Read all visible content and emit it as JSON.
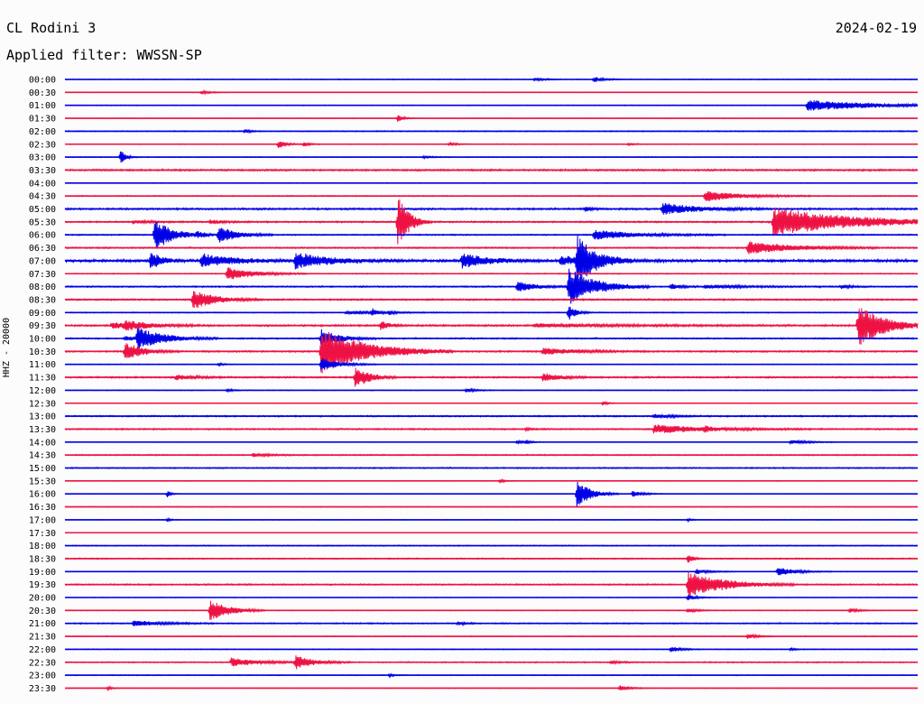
{
  "header": {
    "station": "CL Rodini 3",
    "date": "2024-02-19",
    "filter": "Applied filter: WWSSN-SP"
  },
  "chart_data": {
    "type": "helicorder",
    "title": "CL Rodini 3",
    "subtitle": "Applied filter: WWSSN-SP",
    "ylabel": "HHZ - 20000",
    "colors": [
      "#0000e6",
      "#ee1144"
    ],
    "rows": [
      {
        "time": "00:00",
        "noise": 0.4,
        "events": [
          [
            0.55,
            0.35,
            1
          ],
          [
            0.62,
            0.55,
            1
          ]
        ]
      },
      {
        "time": "00:30",
        "noise": 0.3,
        "events": [
          [
            0.16,
            0.3,
            1
          ]
        ]
      },
      {
        "time": "01:00",
        "noise": 0.4,
        "events": [
          [
            0.87,
            1.0,
            8
          ]
        ]
      },
      {
        "time": "01:30",
        "noise": 0.3,
        "events": [
          [
            0.39,
            0.7,
            0.6
          ]
        ]
      },
      {
        "time": "02:00",
        "noise": 0.5,
        "events": [
          [
            0.21,
            0.4,
            0.6
          ]
        ]
      },
      {
        "time": "02:30",
        "noise": 0.4,
        "events": [
          [
            0.25,
            0.8,
            0.8
          ],
          [
            0.28,
            0.4,
            0.6
          ],
          [
            0.45,
            0.3,
            0.8
          ],
          [
            0.66,
            0.25,
            0.5
          ]
        ]
      },
      {
        "time": "03:00",
        "noise": 0.4,
        "events": [
          [
            0.065,
            1.4,
            0.6
          ],
          [
            0.42,
            0.2,
            1
          ]
        ]
      },
      {
        "time": "03:30",
        "noise": 0.9,
        "events": []
      },
      {
        "time": "04:00",
        "noise": 0.35,
        "events": []
      },
      {
        "time": "04:30",
        "noise": 0.5,
        "events": [
          [
            0.75,
            1.0,
            4
          ]
        ]
      },
      {
        "time": "05:00",
        "noise": 0.9,
        "events": [
          [
            0.61,
            0.5,
            0.6
          ],
          [
            0.7,
            1.1,
            4
          ]
        ]
      },
      {
        "time": "05:30",
        "noise": 0.8,
        "events": [
          [
            0.08,
            0.3,
            2
          ],
          [
            0.17,
            0.4,
            1.5
          ],
          [
            0.39,
            5.5,
            1.2
          ],
          [
            0.83,
            2.6,
            9
          ]
        ]
      },
      {
        "time": "06:00",
        "noise": 0.6,
        "events": [
          [
            0.105,
            3.0,
            2
          ],
          [
            0.155,
            0.5,
            1
          ],
          [
            0.18,
            1.8,
            2
          ],
          [
            0.62,
            0.9,
            5
          ]
        ]
      },
      {
        "time": "06:30",
        "noise": 0.7,
        "events": [
          [
            0.8,
            1.2,
            5
          ]
        ]
      },
      {
        "time": "07:00",
        "noise": 1.3,
        "events": [
          [
            0.1,
            1.8,
            1.2
          ],
          [
            0.16,
            1.2,
            4
          ],
          [
            0.27,
            1.4,
            4
          ],
          [
            0.465,
            1.4,
            3
          ],
          [
            0.58,
            0.8,
            4
          ],
          [
            0.6,
            4.5,
            2
          ]
        ]
      },
      {
        "time": "07:30",
        "noise": 0.5,
        "events": [
          [
            0.19,
            1.2,
            3
          ]
        ]
      },
      {
        "time": "08:00",
        "noise": 0.7,
        "events": [
          [
            0.53,
            1.0,
            2
          ],
          [
            0.59,
            3.5,
            3
          ],
          [
            0.71,
            0.6,
            1
          ],
          [
            0.75,
            0.3,
            5
          ],
          [
            0.91,
            0.4,
            1
          ]
        ]
      },
      {
        "time": "08:30",
        "noise": 0.8,
        "events": [
          [
            0.15,
            1.8,
            2.5
          ]
        ]
      },
      {
        "time": "09:00",
        "noise": 0.5,
        "events": [
          [
            0.33,
            0.3,
            4
          ],
          [
            0.36,
            0.7,
            0.6
          ],
          [
            0.38,
            0.4,
            0.5
          ],
          [
            0.59,
            1.6,
            0.8
          ]
        ]
      },
      {
        "time": "09:30",
        "noise": 0.9,
        "events": [
          [
            0.055,
            0.6,
            3
          ],
          [
            0.07,
            0.6,
            3
          ],
          [
            0.37,
            0.9,
            1
          ],
          [
            0.55,
            0.3,
            10
          ],
          [
            0.93,
            3.8,
            3
          ]
        ]
      },
      {
        "time": "10:00",
        "noise": 0.7,
        "events": [
          [
            0.085,
            1.8,
            3
          ],
          [
            0.3,
            1.7,
            2
          ],
          [
            0.07,
            0.4,
            3
          ]
        ]
      },
      {
        "time": "10:30",
        "noise": 0.8,
        "events": [
          [
            0.07,
            1.7,
            2
          ],
          [
            0.3,
            4.2,
            5
          ],
          [
            0.56,
            0.6,
            4
          ]
        ]
      },
      {
        "time": "11:00",
        "noise": 0.4,
        "events": [
          [
            0.18,
            0.3,
            0.5
          ],
          [
            0.3,
            1.2,
            2
          ]
        ]
      },
      {
        "time": "11:30",
        "noise": 0.8,
        "events": [
          [
            0.13,
            0.5,
            2
          ],
          [
            0.34,
            2.2,
            1.5
          ],
          [
            0.56,
            0.8,
            2
          ]
        ]
      },
      {
        "time": "12:00",
        "noise": 0.4,
        "events": [
          [
            0.19,
            0.3,
            0.6
          ],
          [
            0.47,
            0.4,
            1
          ]
        ]
      },
      {
        "time": "12:30",
        "noise": 0.3,
        "events": [
          [
            0.63,
            0.4,
            0.6
          ]
        ]
      },
      {
        "time": "13:00",
        "noise": 0.7,
        "events": [
          [
            0.69,
            0.4,
            2
          ]
        ]
      },
      {
        "time": "13:30",
        "noise": 0.7,
        "events": [
          [
            0.54,
            0.3,
            0.6
          ],
          [
            0.69,
            0.8,
            6
          ],
          [
            0.75,
            0.5,
            0.5
          ]
        ]
      },
      {
        "time": "14:00",
        "noise": 0.3,
        "events": [
          [
            0.53,
            0.5,
            0.5
          ],
          [
            0.54,
            0.4,
            0.6
          ],
          [
            0.85,
            0.4,
            2
          ]
        ]
      },
      {
        "time": "14:30",
        "noise": 0.6,
        "events": [
          [
            0.22,
            0.3,
            2
          ]
        ]
      },
      {
        "time": "15:00",
        "noise": 0.6,
        "events": []
      },
      {
        "time": "15:30",
        "noise": 0.3,
        "events": [
          [
            0.51,
            0.4,
            0.5
          ]
        ]
      },
      {
        "time": "16:00",
        "noise": 0.3,
        "events": [
          [
            0.12,
            0.6,
            0.4
          ],
          [
            0.6,
            2.6,
            1.5
          ],
          [
            0.665,
            0.6,
            1.2
          ]
        ]
      },
      {
        "time": "16:30",
        "noise": 0.4,
        "events": []
      },
      {
        "time": "17:00",
        "noise": 0.3,
        "events": [
          [
            0.12,
            0.3,
            0.4
          ],
          [
            0.73,
            0.3,
            0.4
          ]
        ]
      },
      {
        "time": "17:30",
        "noise": 0.2,
        "events": []
      },
      {
        "time": "18:00",
        "noise": 0.5,
        "events": []
      },
      {
        "time": "18:30",
        "noise": 0.6,
        "events": [
          [
            0.73,
            1.2,
            0.5
          ]
        ]
      },
      {
        "time": "19:00",
        "noise": 0.3,
        "events": [
          [
            0.74,
            0.5,
            1.5
          ],
          [
            0.835,
            0.9,
            2
          ]
        ]
      },
      {
        "time": "19:30",
        "noise": 0.7,
        "events": [
          [
            0.73,
            2.5,
            4
          ]
        ]
      },
      {
        "time": "20:00",
        "noise": 0.3,
        "events": [
          [
            0.73,
            0.6,
            1
          ]
        ]
      },
      {
        "time": "20:30",
        "noise": 0.4,
        "events": [
          [
            0.17,
            2.2,
            2
          ],
          [
            0.73,
            0.4,
            1
          ],
          [
            0.92,
            0.4,
            1
          ]
        ]
      },
      {
        "time": "21:00",
        "noise": 0.6,
        "events": [
          [
            0.08,
            0.6,
            3
          ],
          [
            0.46,
            0.3,
            1
          ]
        ]
      },
      {
        "time": "21:30",
        "noise": 0.4,
        "events": [
          [
            0.8,
            0.5,
            1
          ]
        ]
      },
      {
        "time": "22:00",
        "noise": 0.4,
        "events": [
          [
            0.71,
            0.7,
            1
          ],
          [
            0.85,
            0.3,
            0.5
          ]
        ]
      },
      {
        "time": "22:30",
        "noise": 0.6,
        "events": [
          [
            0.195,
            0.8,
            3
          ],
          [
            0.27,
            1.3,
            2
          ],
          [
            0.64,
            0.3,
            1
          ]
        ]
      },
      {
        "time": "23:00",
        "noise": 0.4,
        "events": [
          [
            0.38,
            0.3,
            0.5
          ]
        ]
      },
      {
        "time": "23:30",
        "noise": 0.3,
        "events": [
          [
            0.05,
            0.3,
            0.5
          ],
          [
            0.65,
            0.6,
            1
          ]
        ]
      }
    ]
  }
}
